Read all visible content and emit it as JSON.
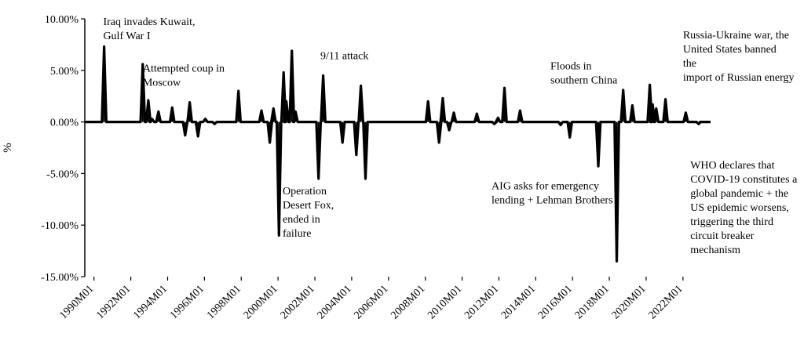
{
  "chart_data": {
    "type": "line",
    "title": "",
    "xlabel": "",
    "ylabel": "%",
    "ylim": [
      -15,
      10
    ],
    "yticks": [
      10,
      5,
      0,
      -5,
      -10,
      -15
    ],
    "ytick_labels": [
      "10.00%",
      "5.00%",
      "0.00%",
      "-5.00%",
      "-10.00%",
      "-15.00%"
    ],
    "x_range": [
      1989.5,
      2023.5
    ],
    "xticks": [
      1990,
      1992,
      1994,
      1996,
      1998,
      2000,
      2002,
      2004,
      2006,
      2008,
      2010,
      2012,
      2014,
      2016,
      2018,
      2020,
      2022
    ],
    "xtick_labels": [
      "1990M01",
      "1992M01",
      "1994M01",
      "1996M01",
      "1998M01",
      "2000M01",
      "2002M01",
      "2004M01",
      "2006M01",
      "2008M01",
      "2010M01",
      "2012M01",
      "2014M01",
      "2016M01",
      "2018M01",
      "2020M01",
      "2022M01"
    ],
    "grid": false,
    "legend": "none",
    "series": [
      {
        "color": "#000000",
        "x": [
          1990.55,
          1992.65,
          1992.95,
          1993.15,
          1993.5,
          1994.25,
          1994.95,
          1995.2,
          1995.65,
          1996.05,
          1996.55,
          1997.85,
          1999.1,
          1999.55,
          1999.75,
          2000.05,
          2000.3,
          2000.45,
          2000.75,
          2000.95,
          2002.2,
          2002.45,
          2003.5,
          2004.25,
          2004.5,
          2004.75,
          2008.15,
          2008.75,
          2008.95,
          2009.3,
          2009.55,
          2010.8,
          2011.75,
          2011.95,
          2012.3,
          2013.15,
          2015.35,
          2015.85,
          2017.4,
          2018.4,
          2018.75,
          2019.25,
          2020.2,
          2020.35,
          2020.55,
          2021.05,
          2022.15,
          2022.85,
          2023.05
        ],
        "y": [
          7.3,
          5.6,
          2.1,
          0.3,
          1.0,
          1.4,
          -1.3,
          1.9,
          -1.4,
          0.3,
          -0.2,
          3.0,
          1.1,
          -2.0,
          1.3,
          -11.0,
          4.8,
          2.0,
          6.9,
          1.0,
          -5.5,
          4.5,
          -2.0,
          -3.2,
          3.5,
          -5.5,
          2.0,
          -2.0,
          2.3,
          -0.8,
          0.9,
          0.8,
          -0.2,
          0.4,
          3.3,
          1.1,
          -0.3,
          -1.5,
          -4.3,
          -13.5,
          3.1,
          1.6,
          3.6,
          1.7,
          1.3,
          2.2,
          0.9,
          -0.2,
          0.0
        ]
      }
    ],
    "annotations": [
      {
        "lines": [
          "Iraq invades Kuwait,",
          "Gulf War I"
        ],
        "x": 1990.5,
        "y": 10.3
      },
      {
        "lines": [
          "Attempted coup in",
          "Moscow"
        ],
        "x": 1992.65,
        "y": 5.8
      },
      {
        "lines": [
          "9/11 attack"
        ],
        "x": 2002.3,
        "y": 7.0
      },
      {
        "lines": [
          "Operation",
          "Desert Fox,",
          "ended in",
          "failure"
        ],
        "x": 2000.25,
        "y": -6.1
      },
      {
        "lines": [
          "Floods in",
          "southern China"
        ],
        "x": 2014.8,
        "y": 6.0
      },
      {
        "lines": [
          "Russia-Ukraine war, the",
          "United States banned",
          "the",
          "import of Russian energy"
        ],
        "x": 2022.0,
        "y": 9.0
      },
      {
        "lines": [
          "AIG asks for emergency",
          "lending + Lehman Brothers"
        ],
        "x": 2011.6,
        "y": -5.6
      },
      {
        "lines": [
          "WHO declares that",
          "COVID-19 constitutes a",
          "global pandemic + the",
          "US epidemic worsens,",
          "triggering the third",
          "circuit breaker",
          "mechanism"
        ],
        "x": 2022.4,
        "y": -3.6
      }
    ]
  }
}
